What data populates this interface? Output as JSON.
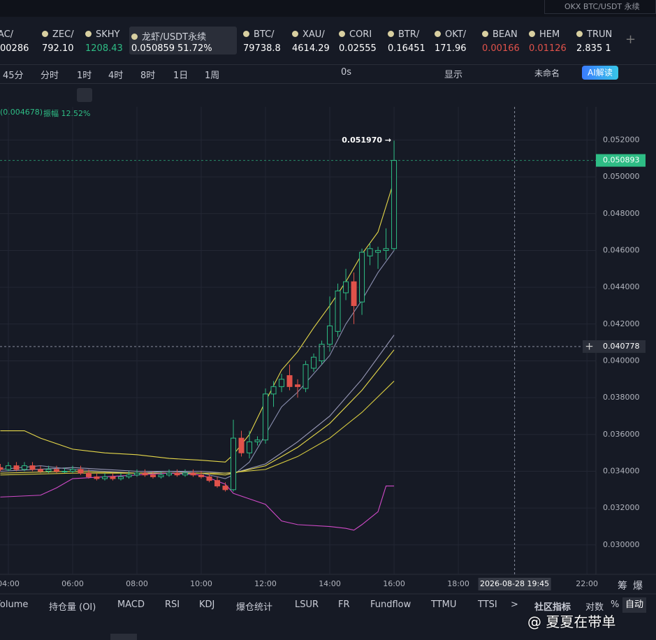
{
  "search": "OKX BTC/USDT 永续",
  "tickers": [
    {
      "symbol": "TAC/",
      "price": "00286"
    },
    {
      "symbol": "ZEC/",
      "price": "792.10"
    },
    {
      "symbol": "SKHY",
      "price": "1208.43"
    },
    {
      "symbol": "龙虾/USDT永续",
      "price": "0.050859",
      "change": "51.72%"
    },
    {
      "symbol": "BTC/",
      "price": "79738.8"
    },
    {
      "symbol": "XAU/",
      "price": "4614.29"
    },
    {
      "symbol": "CORI",
      "price": "0.02555"
    },
    {
      "symbol": "BTR/",
      "price": "0.16451"
    },
    {
      "symbol": "OKT/",
      "price": "171.96"
    },
    {
      "symbol": "BEAN",
      "price": "0.00166"
    },
    {
      "symbol": "HEM",
      "price": "0.01126"
    },
    {
      "symbol": "TRUN",
      "price": "2.835 1"
    }
  ],
  "timeframes": [
    "45分",
    "分时",
    "1时",
    "4时",
    "8时",
    "1日",
    "1周"
  ],
  "toolbar_right": {
    "countdown": "0s",
    "display": "显示",
    "layout": "未命名",
    "ai": "AI解读"
  },
  "info": {
    "change": "(0.004678)",
    "amplitude": "振幅 12.52%"
  },
  "indicators": [
    "Volume",
    "持仓量 (OI)",
    "MACD",
    "RSI",
    "KDJ",
    "爆仓统计",
    "LSUR",
    "FR",
    "Fundflow",
    "TTMU",
    "TTSI"
  ],
  "bottom_right": {
    "more": ">",
    "community": "社区指标",
    "log": "对数",
    "percent": "%",
    "auto": "自动"
  },
  "corner": [
    "筹",
    "爆"
  ],
  "watermark": "@ 夏夏在带单",
  "chart_data": {
    "type": "candlestick",
    "x": [
      3.75,
      4,
      4.25,
      4.5,
      4.75,
      5,
      5.25,
      5.5,
      5.75,
      6,
      6.25,
      6.5,
      6.75,
      7,
      7.25,
      7.5,
      7.75,
      8,
      8.25,
      8.5,
      8.75,
      9,
      9.25,
      9.5,
      9.75,
      10,
      10.25,
      10.5,
      10.75,
      11,
      11.25,
      11.5,
      11.75,
      12,
      12.25,
      12.5,
      12.75,
      13,
      13.25,
      13.5,
      13.75,
      14,
      14.25,
      14.5,
      14.75,
      15,
      15.25,
      15.5,
      15.75,
      16
    ],
    "open": [
      0.0342,
      0.0341,
      0.0343,
      0.0341,
      0.0343,
      0.0341,
      0.034,
      0.0341,
      0.034,
      0.034,
      0.0341,
      0.0339,
      0.0337,
      0.0336,
      0.0337,
      0.0336,
      0.0337,
      0.0338,
      0.0339,
      0.0338,
      0.0337,
      0.0338,
      0.0339,
      0.0338,
      0.0339,
      0.0338,
      0.0337,
      0.0335,
      0.0332,
      0.033,
      0.0358,
      0.035,
      0.0356,
      0.0357,
      0.0382,
      0.0386,
      0.0392,
      0.0387,
      0.0385,
      0.0396,
      0.04,
      0.0409,
      0.0416,
      0.0437,
      0.0443,
      0.0432,
      0.0457,
      0.0459,
      0.046,
      0.0461
    ],
    "high": [
      0.0344,
      0.0345,
      0.0345,
      0.0345,
      0.0345,
      0.0343,
      0.0343,
      0.0343,
      0.0342,
      0.0343,
      0.0343,
      0.0341,
      0.0339,
      0.0339,
      0.0339,
      0.0339,
      0.034,
      0.0341,
      0.0341,
      0.034,
      0.034,
      0.0341,
      0.0341,
      0.0341,
      0.0341,
      0.034,
      0.0339,
      0.0337,
      0.0334,
      0.0368,
      0.0362,
      0.0362,
      0.0359,
      0.0385,
      0.0389,
      0.0393,
      0.0398,
      0.039,
      0.04,
      0.0404,
      0.0411,
      0.0435,
      0.0442,
      0.045,
      0.0448,
      0.0461,
      0.0464,
      0.0462,
      0.0472,
      0.05197
    ],
    "low": [
      0.034,
      0.034,
      0.034,
      0.034,
      0.034,
      0.0339,
      0.0339,
      0.0339,
      0.0339,
      0.0339,
      0.0338,
      0.0336,
      0.0335,
      0.0335,
      0.0335,
      0.0335,
      0.0336,
      0.0337,
      0.0337,
      0.0336,
      0.0336,
      0.0337,
      0.0337,
      0.0337,
      0.0337,
      0.0336,
      0.0334,
      0.0331,
      0.0329,
      0.0329,
      0.0348,
      0.0347,
      0.0354,
      0.0355,
      0.0375,
      0.0383,
      0.0384,
      0.038,
      0.0383,
      0.0394,
      0.0398,
      0.0405,
      0.0413,
      0.0433,
      0.042,
      0.0425,
      0.0452,
      0.045,
      0.0455,
      0.046
    ],
    "close": [
      0.0341,
      0.0343,
      0.0341,
      0.0343,
      0.0341,
      0.034,
      0.0341,
      0.034,
      0.034,
      0.0341,
      0.0339,
      0.0337,
      0.0336,
      0.0337,
      0.0336,
      0.0337,
      0.0338,
      0.0339,
      0.0338,
      0.0337,
      0.0338,
      0.0339,
      0.0338,
      0.0339,
      0.0338,
      0.0337,
      0.0335,
      0.0332,
      0.033,
      0.0358,
      0.035,
      0.0356,
      0.0357,
      0.0382,
      0.0386,
      0.039,
      0.0386,
      0.0386,
      0.0398,
      0.0402,
      0.0409,
      0.0419,
      0.0438,
      0.0443,
      0.043,
      0.0459,
      0.0461,
      0.046,
      0.0461,
      0.050893
    ],
    "up_color": "#2ebd85",
    "down_color": "#e0524a",
    "overlays": [
      {
        "color": "#e6d84a",
        "x": [
          3.75,
          4,
          4.5,
          5,
          6,
          7,
          8,
          9,
          10,
          10.75,
          11,
          11.5,
          12,
          12.5,
          13,
          13.5,
          14,
          14.5,
          15,
          15.5,
          16
        ],
        "values": [
          0.0362,
          0.0362,
          0.0362,
          0.0358,
          0.0352,
          0.035,
          0.0349,
          0.0347,
          0.0346,
          0.0345,
          0.0349,
          0.036,
          0.0378,
          0.0395,
          0.0405,
          0.0418,
          0.043,
          0.0443,
          0.0458,
          0.047,
          0.0498
        ]
      },
      {
        "color": "#8a8fb0",
        "x": [
          3.75,
          5,
          6,
          7,
          8,
          9,
          10,
          10.75,
          11,
          11.5,
          12,
          12.5,
          13,
          13.5,
          14,
          14.5,
          15,
          15.5,
          16
        ],
        "values": [
          0.0341,
          0.0343,
          0.0341,
          0.034,
          0.0339,
          0.034,
          0.0339,
          0.0336,
          0.0338,
          0.0345,
          0.036,
          0.0375,
          0.0383,
          0.0393,
          0.0403,
          0.042,
          0.0433,
          0.0448,
          0.046
        ]
      },
      {
        "color": "#9a9ab8",
        "x": [
          3.75,
          6,
          8,
          10,
          10.75,
          11,
          12,
          13,
          14,
          15,
          16
        ],
        "values": [
          0.034,
          0.0342,
          0.034,
          0.034,
          0.0339,
          0.0339,
          0.0344,
          0.0356,
          0.037,
          0.039,
          0.0414
        ]
      },
      {
        "color": "#e6d84a",
        "x": [
          3.75,
          6,
          8,
          10,
          10.75,
          12,
          13,
          14,
          15,
          16
        ],
        "values": [
          0.0339,
          0.034,
          0.0339,
          0.0339,
          0.0338,
          0.0343,
          0.0353,
          0.0366,
          0.0384,
          0.0406
        ]
      },
      {
        "color": "#d8cc40",
        "x": [
          3.75,
          6,
          8,
          10,
          10.75,
          12,
          13,
          14,
          15,
          16
        ],
        "values": [
          0.0338,
          0.0339,
          0.0339,
          0.0339,
          0.0339,
          0.0341,
          0.0348,
          0.0358,
          0.0372,
          0.0389
        ]
      },
      {
        "color": "#d04ac8",
        "x": [
          3.75,
          5,
          5.5,
          6,
          7,
          8,
          9,
          10,
          10.75,
          11,
          11.5,
          12,
          12.5,
          13,
          14,
          14.5,
          14.75,
          15,
          15.5,
          15.75,
          16
        ],
        "values": [
          0.0326,
          0.0327,
          0.0331,
          0.0336,
          0.0337,
          0.0338,
          0.0339,
          0.0338,
          0.0333,
          0.0328,
          0.0325,
          0.0322,
          0.0313,
          0.0311,
          0.031,
          0.0309,
          0.0308,
          0.0311,
          0.0318,
          0.0332,
          0.0332
        ]
      }
    ],
    "high_label": "0.051970 →",
    "last_price": 0.050893,
    "crosshair": {
      "y": 0.040778,
      "x": 19.75,
      "x_label": "2026-08-28 19:45"
    },
    "xlim": [
      3.74,
      22.28
    ],
    "ylim": [
      0.0284,
      0.0538
    ],
    "xticks": [
      {
        "value": 4,
        "label": "04:00"
      },
      {
        "value": 6,
        "label": "06:00"
      },
      {
        "value": 8,
        "label": "08:00"
      },
      {
        "value": 10,
        "label": "10:00"
      },
      {
        "value": 12,
        "label": "12:00"
      },
      {
        "value": 14,
        "label": "14:00"
      },
      {
        "value": 16,
        "label": "16:00"
      },
      {
        "value": 18,
        "label": "18:00"
      },
      {
        "value": 22,
        "label": "22:00"
      }
    ],
    "yticks": [
      {
        "value": 0.03,
        "label": "0.030000"
      },
      {
        "value": 0.032,
        "label": "0.032000"
      },
      {
        "value": 0.034,
        "label": "0.034000"
      },
      {
        "value": 0.036,
        "label": "0.036000"
      },
      {
        "value": 0.038,
        "label": "0.038000"
      },
      {
        "value": 0.04,
        "label": "0.040000"
      },
      {
        "value": 0.042,
        "label": "0.042000"
      },
      {
        "value": 0.044,
        "label": "0.044000"
      },
      {
        "value": 0.046,
        "label": "0.046000"
      },
      {
        "value": 0.048,
        "label": "0.048000"
      },
      {
        "value": 0.05,
        "label": "0.050000"
      },
      {
        "value": 0.052,
        "label": "0.052000"
      }
    ],
    "grid": true
  }
}
